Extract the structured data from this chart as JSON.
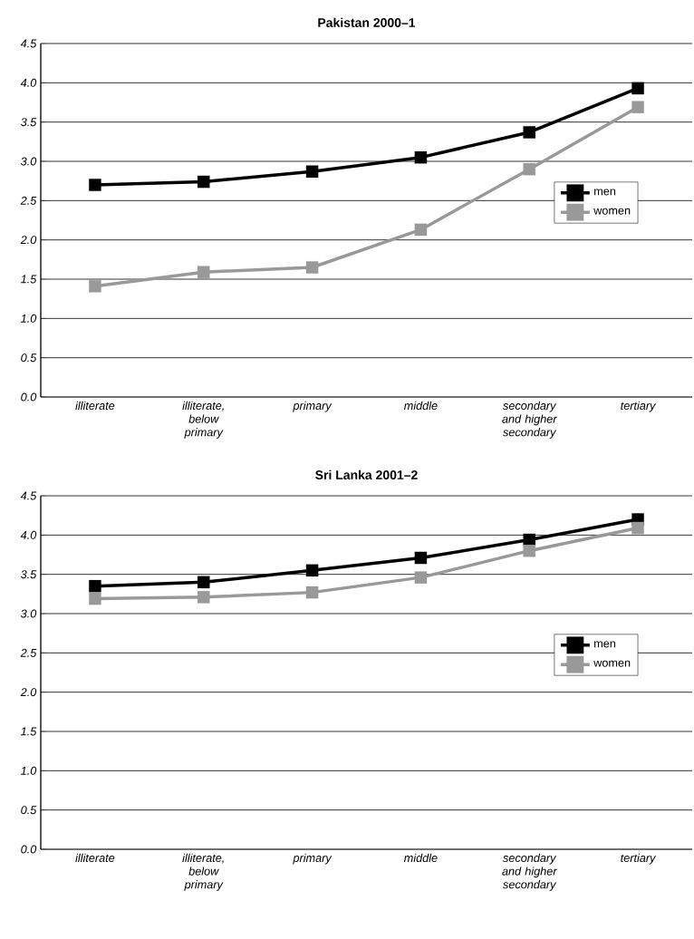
{
  "chart_data": [
    {
      "type": "line",
      "title": "Pakistan 2000–1",
      "categories": [
        "illiterate",
        "illiterate, below primary",
        "primary",
        "middle",
        "secondary and higher secondary",
        "tertiary"
      ],
      "series": [
        {
          "name": "men",
          "color": "#000000",
          "values": [
            2.7,
            2.74,
            2.87,
            3.05,
            3.37,
            3.93
          ]
        },
        {
          "name": "women",
          "color": "#999999",
          "values": [
            1.41,
            1.59,
            1.65,
            2.13,
            2.9,
            3.69
          ]
        }
      ],
      "ylim": [
        0,
        4.5
      ],
      "yticks": [
        {
          "value": 0,
          "label": "0.0"
        },
        {
          "value": 0.5,
          "label": "0.5"
        },
        {
          "value": 1,
          "label": "1.0"
        },
        {
          "value": 1.5,
          "label": "1.5"
        },
        {
          "value": 2,
          "label": "2.0"
        },
        {
          "value": 2.5,
          "label": "2.5"
        },
        {
          "value": 3,
          "label": "3.0"
        },
        {
          "value": 3.5,
          "label": "3.5"
        },
        {
          "value": 4,
          "label": "4.0"
        },
        {
          "value": 4.5,
          "label": "4.5"
        }
      ],
      "grid": "y",
      "legend": "right",
      "marker": "square",
      "line_style": "solid"
    },
    {
      "type": "line",
      "title": "Sri Lanka 2001–2",
      "categories": [
        "illiterate",
        "illiterate, below primary",
        "primary",
        "middle",
        "secondary and higher secondary",
        "tertiary"
      ],
      "series": [
        {
          "name": "men",
          "color": "#000000",
          "values": [
            3.35,
            3.4,
            3.55,
            3.71,
            3.94,
            4.2
          ]
        },
        {
          "name": "women",
          "color": "#999999",
          "values": [
            3.19,
            3.21,
            3.27,
            3.46,
            3.8,
            4.09
          ]
        }
      ],
      "ylim": [
        0,
        4.5
      ],
      "yticks": [
        {
          "value": 0,
          "label": "0.0"
        },
        {
          "value": 0.5,
          "label": "0.5"
        },
        {
          "value": 1,
          "label": "1.0"
        },
        {
          "value": 1.5,
          "label": "1.5"
        },
        {
          "value": 2,
          "label": "2.0"
        },
        {
          "value": 2.5,
          "label": "2.5"
        },
        {
          "value": 3,
          "label": "3.0"
        },
        {
          "value": 3.5,
          "label": "3.5"
        },
        {
          "value": 4,
          "label": "4.0"
        },
        {
          "value": 4.5,
          "label": "4.5"
        }
      ],
      "grid": "y",
      "legend": "right",
      "marker": "square",
      "line_style": "solid"
    }
  ]
}
